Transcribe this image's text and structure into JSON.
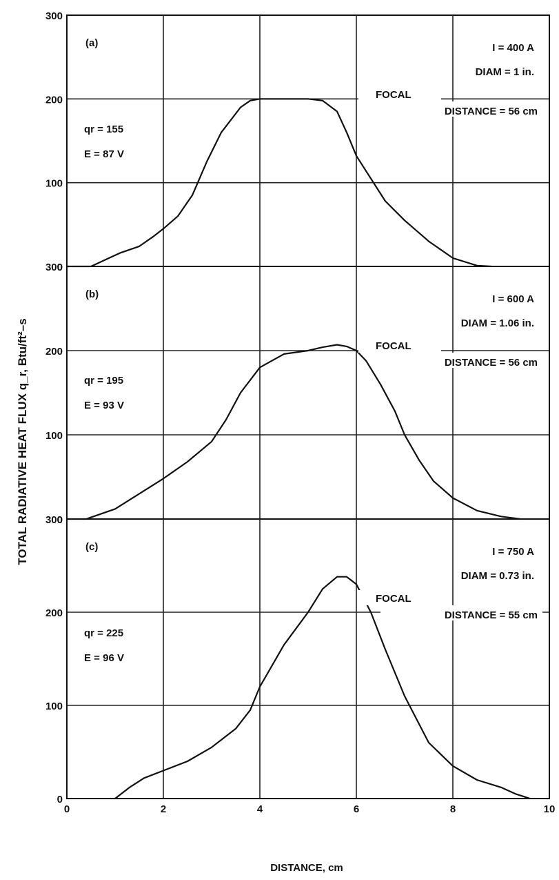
{
  "ylabel": "TOTAL RADIATIVE HEAT FLUX q_r, Btu/ft²–s",
  "xlabel": "DISTANCE, cm",
  "chart_data": [
    {
      "type": "line",
      "panel_label": "(a)",
      "annotations": {
        "current": "I = 400 A",
        "diam": "DIAM = 1 in.",
        "focal1": "FOCAL",
        "focal2": "DISTANCE = 56 cm",
        "qr": "qr = 155",
        "e": "E = 87 V"
      },
      "xlim": [
        0,
        10
      ],
      "ylim": [
        0,
        300
      ],
      "yticks": [
        "0",
        "100",
        "200",
        "300"
      ],
      "grid": true,
      "x": [
        0.0,
        0.5,
        0.8,
        1.1,
        1.5,
        1.8,
        2.0,
        2.3,
        2.6,
        2.9,
        3.2,
        3.6,
        3.8,
        4.0,
        4.3,
        4.6,
        5.0,
        5.3,
        5.6,
        5.8,
        6.0,
        6.3,
        6.6,
        7.0,
        7.5,
        8.0,
        8.5,
        8.8
      ],
      "y": [
        0,
        0,
        8,
        16,
        24,
        36,
        45,
        60,
        85,
        125,
        160,
        190,
        198,
        200,
        200,
        200,
        200,
        198,
        185,
        160,
        132,
        105,
        78,
        55,
        30,
        10,
        1,
        0
      ]
    },
    {
      "type": "line",
      "panel_label": "(b)",
      "annotations": {
        "current": "I = 600 A",
        "diam": "DIAM = 1.06 in.",
        "focal1": "FOCAL",
        "focal2": "DISTANCE = 56 cm",
        "qr": "qr = 195",
        "e": "E = 93 V"
      },
      "xlim": [
        0,
        10
      ],
      "ylim": [
        0,
        300
      ],
      "yticks": [
        "0",
        "100",
        "200",
        "300"
      ],
      "grid": true,
      "x": [
        0.0,
        0.4,
        1.0,
        1.5,
        2.0,
        2.5,
        3.0,
        3.3,
        3.6,
        4.0,
        4.5,
        5.0,
        5.3,
        5.6,
        5.8,
        6.0,
        6.2,
        6.5,
        6.8,
        7.0,
        7.3,
        7.6,
        8.0,
        8.5,
        9.0,
        9.4
      ],
      "y": [
        0,
        0,
        12,
        30,
        48,
        68,
        92,
        118,
        150,
        180,
        196,
        200,
        204,
        207,
        205,
        200,
        188,
        160,
        128,
        100,
        70,
        45,
        25,
        10,
        3,
        0
      ]
    },
    {
      "type": "line",
      "panel_label": "(c)",
      "annotations": {
        "current": "I = 750 A",
        "diam": "DIAM = 0.73 in.",
        "focal1": "FOCAL",
        "focal2": "DISTANCE = 55 cm",
        "qr": "qr = 225",
        "e": "E = 96 V"
      },
      "xlim": [
        0,
        10
      ],
      "ylim": [
        0,
        300
      ],
      "yticks": [
        "0",
        "100",
        "200",
        "300"
      ],
      "xticks": [
        "0",
        "2",
        "4",
        "6",
        "8",
        "10"
      ],
      "grid": true,
      "x": [
        1.0,
        1.3,
        1.6,
        2.0,
        2.5,
        3.0,
        3.5,
        3.8,
        4.0,
        4.5,
        5.0,
        5.3,
        5.6,
        5.8,
        6.0,
        6.3,
        6.6,
        7.0,
        7.5,
        8.0,
        8.5,
        9.0,
        9.3,
        9.6
      ],
      "y": [
        0,
        12,
        22,
        30,
        40,
        55,
        75,
        95,
        120,
        165,
        200,
        225,
        238,
        238,
        230,
        200,
        160,
        110,
        60,
        35,
        20,
        12,
        5,
        0
      ]
    }
  ]
}
